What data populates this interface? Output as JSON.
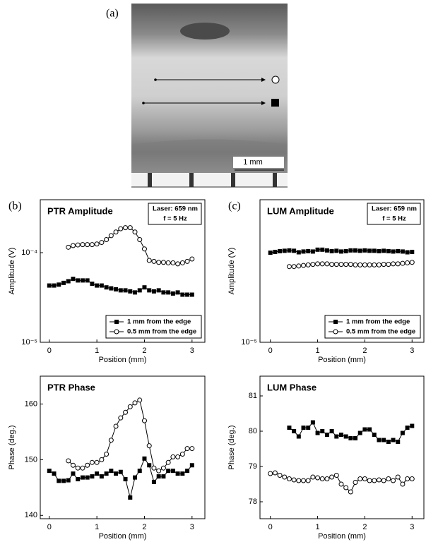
{
  "panel_a": {
    "label": "(a)",
    "scale_label": "1 mm"
  },
  "chart_data": [
    {
      "type": "line",
      "panel_label": "(b)",
      "title": "PTR Amplitude",
      "annotation": [
        "Laser: 659 nm",
        "f = 5 Hz"
      ],
      "xlabel": "Position (mm)",
      "ylabel": "Amplitude (V)",
      "yscale": "log",
      "legend": "bottom-right",
      "xlim": [
        -0.19,
        3.27
      ],
      "ylim": [
        1e-05,
        0.00039
      ],
      "xticks": [
        0,
        1,
        2,
        3
      ],
      "yticks": [
        {
          "value": 1e-05,
          "label": "10⁻⁵"
        },
        {
          "value": 0.0001,
          "label": "10⁻⁴"
        }
      ],
      "x": [
        0,
        0.1,
        0.2,
        0.3,
        0.4,
        0.5,
        0.6,
        0.7,
        0.8,
        0.9,
        1,
        1.1,
        1.2,
        1.3,
        1.4,
        1.5,
        1.6,
        1.7,
        1.8,
        1.9,
        2,
        2.1,
        2.2,
        2.3,
        2.4,
        2.5,
        2.6,
        2.7,
        2.8,
        2.9,
        3
      ],
      "series": [
        {
          "name": "1 mm from the edge",
          "marker": "square",
          "color": "#000000",
          "values": [
            4.3e-05,
            4.3e-05,
            4.4e-05,
            4.6e-05,
            4.8e-05,
            5.1e-05,
            4.9e-05,
            4.9e-05,
            4.9e-05,
            4.5e-05,
            4.3e-05,
            4.3e-05,
            4.1e-05,
            4e-05,
            3.9e-05,
            3.8e-05,
            3.8e-05,
            3.7e-05,
            3.6e-05,
            3.8e-05,
            4.1e-05,
            3.8e-05,
            3.7e-05,
            3.8e-05,
            3.6e-05,
            3.6e-05,
            3.5e-05,
            3.6e-05,
            3.4e-05,
            3.4e-05,
            3.4e-05
          ]
        },
        {
          "name": "0.5 mm from the edge",
          "marker": "circle",
          "color": "#000000",
          "values": [
            null,
            null,
            null,
            null,
            0.000115,
            0.00012,
            0.000122,
            0.000123,
            0.000123,
            0.000123,
            0.000125,
            0.00013,
            0.00014,
            0.000155,
            0.00017,
            0.000185,
            0.00019,
            0.00019,
            0.00017,
            0.00014,
            0.00011,
            8.2e-05,
            8e-05,
            7.8e-05,
            7.8e-05,
            7.7e-05,
            7.7e-05,
            7.5e-05,
            7.7e-05,
            8e-05,
            8.5e-05
          ]
        }
      ]
    },
    {
      "type": "line",
      "panel_label": "(c)",
      "title": "LUM Amplitude",
      "annotation": [
        "Laser: 659 nm",
        "f = 5 Hz"
      ],
      "xlabel": "Position (mm)",
      "ylabel": "Amplitude (V)",
      "yscale": "log",
      "legend": "bottom-right",
      "xlim": [
        -0.22,
        3.25
      ],
      "ylim": [
        1e-05,
        0.00039
      ],
      "xticks": [
        0,
        1,
        2,
        3
      ],
      "yticks": [
        {
          "value": 1e-05,
          "label": "10⁻⁵"
        }
      ],
      "x": [
        0,
        0.1,
        0.2,
        0.3,
        0.4,
        0.5,
        0.6,
        0.7,
        0.8,
        0.9,
        1,
        1.1,
        1.2,
        1.3,
        1.4,
        1.5,
        1.6,
        1.7,
        1.8,
        1.9,
        2,
        2.1,
        2.2,
        2.3,
        2.4,
        2.5,
        2.6,
        2.7,
        2.8,
        2.9,
        3
      ],
      "series": [
        {
          "name": "1 mm from the edge",
          "marker": "square",
          "color": "#000000",
          "values": [
            0.0001,
            0.000102,
            0.000104,
            0.000105,
            0.000106,
            0.000105,
            0.000101,
            0.000103,
            0.000104,
            0.000103,
            0.000108,
            0.000108,
            0.000106,
            0.000104,
            0.000105,
            0.000103,
            0.000104,
            0.000106,
            0.000106,
            0.000105,
            0.000106,
            0.000105,
            0.000105,
            0.000104,
            0.000105,
            0.000104,
            0.000103,
            0.000104,
            0.000103,
            0.000101,
            0.000102
          ]
        },
        {
          "name": "0.5 mm from the edge",
          "marker": "circle",
          "color": "#000000",
          "values": [
            null,
            null,
            null,
            null,
            7e-05,
            7e-05,
            7.1e-05,
            7.2e-05,
            7.3e-05,
            7.4e-05,
            7.5e-05,
            7.5e-05,
            7.5e-05,
            7.4e-05,
            7.4e-05,
            7.4e-05,
            7.4e-05,
            7.4e-05,
            7.3e-05,
            7.3e-05,
            7.3e-05,
            7.3e-05,
            7.3e-05,
            7.3e-05,
            7.4e-05,
            7.4e-05,
            7.5e-05,
            7.5e-05,
            7.6e-05,
            7.7e-05,
            7.8e-05
          ]
        }
      ]
    },
    {
      "type": "line",
      "title": "PTR Phase",
      "xlabel": "Position (mm)",
      "ylabel": "Phase (deg.)",
      "xlim": [
        -0.19,
        3.27
      ],
      "ylim": [
        139.4,
        165
      ],
      "xticks": [
        0,
        1,
        2,
        3
      ],
      "yticks": [
        140,
        150,
        160
      ],
      "x": [
        0,
        0.1,
        0.2,
        0.3,
        0.4,
        0.5,
        0.6,
        0.7,
        0.8,
        0.9,
        1,
        1.1,
        1.2,
        1.3,
        1.4,
        1.5,
        1.6,
        1.7,
        1.8,
        1.9,
        2,
        2.1,
        2.2,
        2.3,
        2.4,
        2.5,
        2.6,
        2.7,
        2.8,
        2.9,
        3
      ],
      "series": [
        {
          "name": "1 mm from the edge",
          "marker": "square",
          "color": "#000000",
          "values": [
            148,
            147.5,
            146.2,
            146.2,
            146.3,
            147.5,
            146.5,
            146.8,
            146.8,
            147,
            147.5,
            147,
            147.5,
            148,
            147.5,
            147.8,
            146.5,
            143.2,
            146.8,
            148,
            150.2,
            149,
            146,
            147,
            147,
            148,
            148,
            147.5,
            147.5,
            148,
            149
          ]
        },
        {
          "name": "0.5 mm from the edge",
          "marker": "circle",
          "color": "#000000",
          "values": [
            null,
            null,
            null,
            null,
            149.8,
            149,
            148.5,
            148.5,
            149,
            149.5,
            149.5,
            150,
            151,
            153.5,
            156,
            157.5,
            158.5,
            159.5,
            160.2,
            160.7,
            157,
            152.5,
            148.5,
            148,
            148.5,
            149.5,
            150.5,
            150.5,
            151,
            152,
            152
          ]
        }
      ]
    },
    {
      "type": "line",
      "title": "LUM Phase",
      "xlabel": "Position (mm)",
      "ylabel": "Phase (deg.)",
      "xlim": [
        -0.22,
        3.25
      ],
      "ylim": [
        77.52,
        81.56
      ],
      "xticks": [
        0,
        1,
        2,
        3
      ],
      "yticks": [
        78,
        79,
        80,
        81
      ],
      "x": [
        0,
        0.1,
        0.2,
        0.3,
        0.4,
        0.5,
        0.6,
        0.7,
        0.8,
        0.9,
        1,
        1.1,
        1.2,
        1.3,
        1.4,
        1.5,
        1.6,
        1.7,
        1.8,
        1.9,
        2,
        2.1,
        2.2,
        2.3,
        2.4,
        2.5,
        2.6,
        2.7,
        2.8,
        2.9,
        3
      ],
      "series": [
        {
          "name": "1 mm from the edge",
          "marker": "square",
          "color": "#000000",
          "values": [
            null,
            null,
            null,
            null,
            80.1,
            80.0,
            79.85,
            80.1,
            80.1,
            80.25,
            79.95,
            80.0,
            79.9,
            80.0,
            79.85,
            79.9,
            79.85,
            79.8,
            79.8,
            79.95,
            80.05,
            80.05,
            79.9,
            79.75,
            79.75,
            79.7,
            79.75,
            79.7,
            79.95,
            80.1,
            80.15
          ]
        },
        {
          "name": "0.5 mm from the edge",
          "marker": "circle",
          "color": "#000000",
          "values": [
            78.8,
            78.82,
            78.75,
            78.7,
            78.65,
            78.62,
            78.6,
            78.6,
            78.6,
            78.7,
            78.68,
            78.65,
            78.65,
            78.7,
            78.75,
            78.5,
            78.4,
            78.28,
            78.55,
            78.65,
            78.65,
            78.6,
            78.6,
            78.62,
            78.6,
            78.65,
            78.6,
            78.7,
            78.5,
            78.65,
            78.65
          ]
        }
      ]
    }
  ]
}
